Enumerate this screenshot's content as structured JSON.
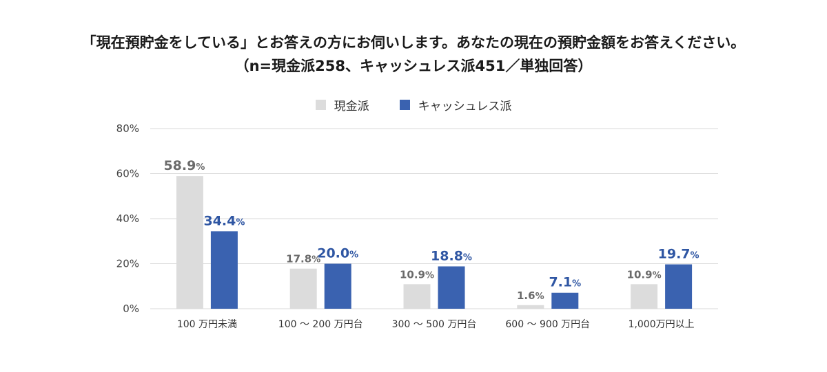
{
  "title_line1": "「現在預貯金をしている」とお答えの方にお伺いします。あなたの現在の預貯金額をお答えください。",
  "title_line2": "（n=現金派258、キャッシュレス派451／単独回答）",
  "colors": {
    "cash": "#dcdcdc",
    "cashless": "#3a62b0",
    "cash_label": "#6a6a6a",
    "cashless_label": "#2f56a3",
    "grid": "#d9d9d9"
  },
  "chart_data": {
    "type": "bar",
    "title": "「現在預貯金をしている」とお答えの方にお伺いします。あなたの現在の預貯金額をお答えください。",
    "subtitle": "（n=現金派258、キャッシュレス派451／単独回答）",
    "categories": [
      "100 万円未満",
      "100 ～ 200 万円台",
      "300 ～ 500 万円台",
      "600 ～ 900 万円台",
      "1,000万円以上"
    ],
    "series": [
      {
        "name": "現金派",
        "values": [
          58.9,
          17.8,
          10.9,
          1.6,
          10.9
        ],
        "labels": [
          "58.9",
          "17.8",
          "10.9",
          "1.6",
          "10.9"
        ]
      },
      {
        "name": "キャッシュレス派",
        "values": [
          34.4,
          20.0,
          18.8,
          7.1,
          19.7
        ],
        "labels": [
          "34.4",
          "20.0",
          "18.8",
          "7.1",
          "19.7"
        ]
      }
    ],
    "ylim": [
      0,
      80
    ],
    "yticks": [
      "0%",
      "20%",
      "40%",
      "60%",
      "80%"
    ],
    "ytick_values": [
      0,
      20,
      40,
      60,
      80
    ],
    "value_suffix": "%",
    "grid": true,
    "legend": "top-center"
  }
}
